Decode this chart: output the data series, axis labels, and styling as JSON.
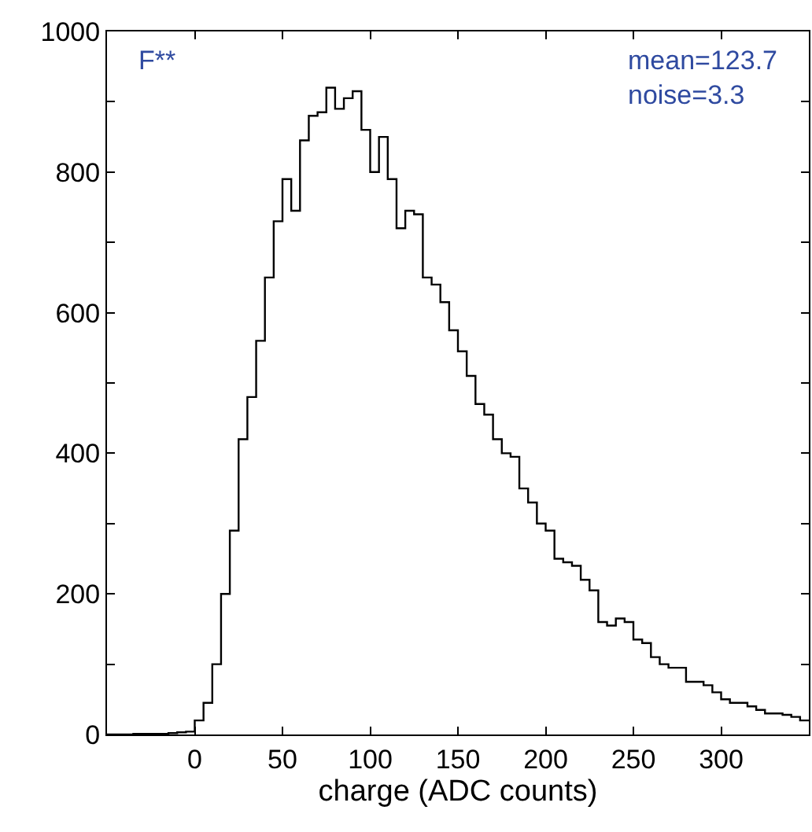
{
  "chart_data": {
    "type": "histogram",
    "xlabel": "charge (ADC counts)",
    "annotations": [
      "F**",
      "mean=123.7\nnoise=3.3"
    ],
    "bins": [
      -50,
      -45,
      -40,
      -35,
      -30,
      -25,
      -20,
      -15,
      -10,
      -5,
      0,
      5,
      10,
      15,
      20,
      25,
      30,
      35,
      40,
      45,
      50,
      55,
      60,
      65,
      70,
      75,
      80,
      85,
      90,
      95,
      100,
      105,
      110,
      115,
      120,
      125,
      130,
      135,
      140,
      145,
      150,
      155,
      160,
      165,
      170,
      175,
      180,
      185,
      190,
      195,
      200,
      205,
      210,
      215,
      220,
      225,
      230,
      235,
      240,
      245,
      250,
      255,
      260,
      265,
      270,
      275,
      280,
      285,
      290,
      295,
      300,
      305,
      310,
      315,
      320,
      325,
      330,
      335,
      340,
      345,
      350
    ],
    "values": [
      0,
      0,
      0,
      1,
      1,
      1,
      1,
      2,
      3,
      4,
      20,
      45,
      100,
      200,
      290,
      420,
      480,
      560,
      650,
      730,
      790,
      745,
      845,
      880,
      885,
      920,
      890,
      905,
      915,
      860,
      800,
      850,
      790,
      720,
      745,
      740,
      650,
      640,
      615,
      575,
      545,
      510,
      470,
      455,
      420,
      400,
      395,
      350,
      330,
      300,
      290,
      250,
      245,
      240,
      220,
      205,
      160,
      155,
      165,
      160,
      135,
      130,
      110,
      100,
      95,
      95,
      75,
      75,
      70,
      60,
      50,
      45,
      45,
      40,
      35,
      30,
      30,
      28,
      25,
      20
    ],
    "color": "#000000",
    "xlim": [
      -50,
      350
    ],
    "xticks": [
      0,
      50,
      100,
      150,
      200,
      250,
      300
    ],
    "ylim": [
      0,
      1000
    ],
    "yticks": [
      0,
      {
        "value": 100,
        "label": null
      },
      200,
      {
        "value": 300,
        "label": null
      },
      400,
      {
        "value": 500,
        "label": null
      },
      600,
      {
        "value": 700,
        "label": null
      },
      800,
      {
        "value": 900,
        "label": null
      },
      1000
    ],
    "line_style": "solid"
  }
}
